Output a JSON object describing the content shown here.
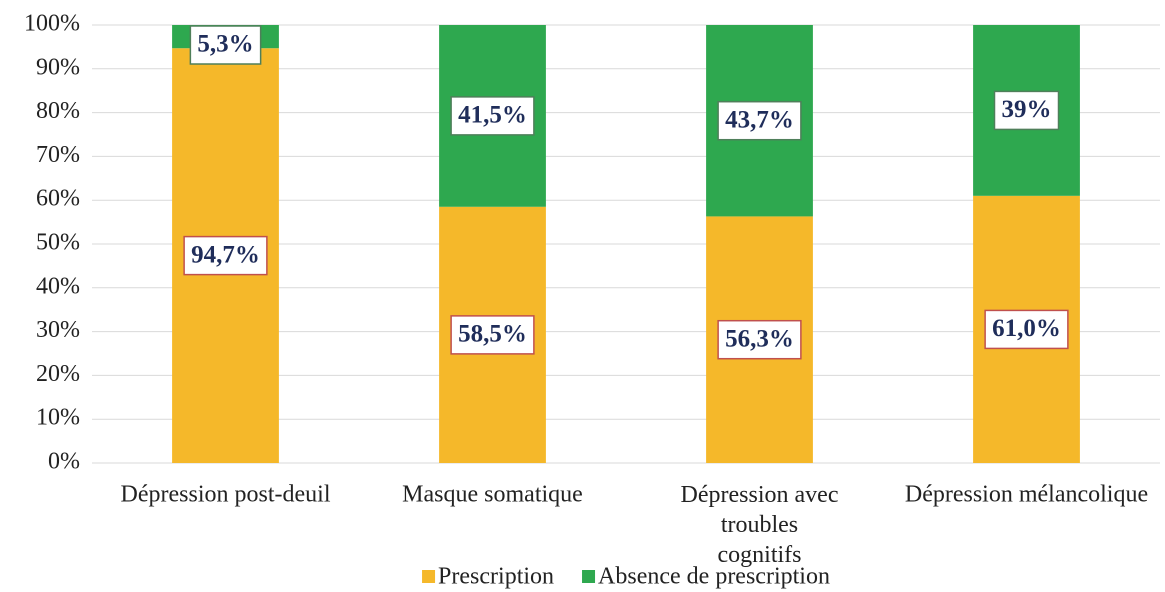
{
  "chart_data": {
    "type": "stacked_bar",
    "categories": [
      "Dépression post-deuil",
      "Masque somatique",
      "Dépression avec troubles cognitifs",
      "Dépression mélancolique"
    ],
    "series": [
      {
        "name": "Prescription",
        "color": "#F5B82A",
        "values": [
          94.7,
          58.5,
          56.3,
          61.0
        ],
        "value_labels": [
          "94,7%",
          "58,5%",
          "56,3%",
          "61,0%"
        ]
      },
      {
        "name": "Absence de prescription",
        "color": "#2EA84F",
        "values": [
          5.3,
          41.5,
          43.7,
          39
        ],
        "value_labels": [
          "5,3%",
          "41,5%",
          "43,7%",
          "39%"
        ]
      }
    ],
    "ylim": [
      0,
      100
    ],
    "yticks": [
      {
        "value": 0,
        "label": "0%"
      },
      {
        "value": 10,
        "label": "10%"
      },
      {
        "value": 20,
        "label": "20%"
      },
      {
        "value": 30,
        "label": "30%"
      },
      {
        "value": 40,
        "label": "40%"
      },
      {
        "value": 50,
        "label": "50%"
      },
      {
        "value": 60,
        "label": "60%"
      },
      {
        "value": 70,
        "label": "70%"
      },
      {
        "value": 80,
        "label": "80%"
      },
      {
        "value": 90,
        "label": "90%"
      },
      {
        "value": 100,
        "label": "100%"
      }
    ],
    "grid": true,
    "legend": "bottom"
  }
}
